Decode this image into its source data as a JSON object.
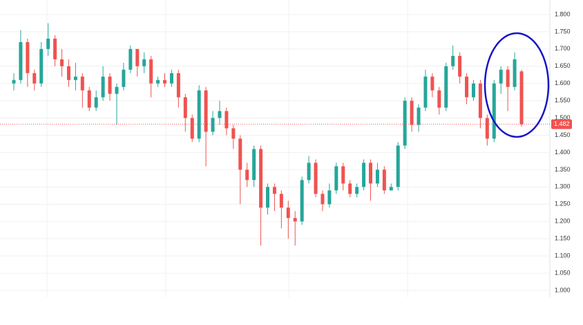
{
  "chart_data": {
    "type": "candlestick",
    "up_color": "#26a69a",
    "down_color": "#ef5350",
    "series": [
      {
        "open": [
          1.6,
          1.61,
          1.72,
          1.63,
          1.6,
          1.7,
          1.73,
          1.67,
          1.65,
          1.61,
          1.62,
          1.58,
          1.53,
          1.56,
          1.62,
          1.57,
          1.59,
          1.64,
          1.7,
          1.65,
          1.67,
          1.6,
          1.61,
          1.6,
          1.63,
          1.56,
          1.5,
          1.44,
          1.58,
          1.46,
          1.5,
          1.52,
          1.47,
          1.44,
          1.35,
          1.32,
          1.41,
          1.24,
          1.3,
          1.28,
          1.24,
          1.21,
          1.2,
          1.32,
          1.37,
          1.28,
          1.25,
          1.29,
          1.36,
          1.31,
          1.28,
          1.3,
          1.37,
          1.31,
          1.35,
          1.29,
          1.3,
          1.42,
          1.55,
          1.48,
          1.53,
          1.62,
          1.58,
          1.53,
          1.65,
          1.68,
          1.62,
          1.56,
          1.6,
          1.5,
          1.44,
          1.6,
          1.64,
          1.59,
          1.635
        ],
        "high": [
          1.63,
          1.755,
          1.73,
          1.64,
          1.72,
          1.775,
          1.74,
          1.7,
          1.67,
          1.66,
          1.63,
          1.59,
          1.58,
          1.65,
          1.63,
          1.6,
          1.66,
          1.71,
          1.7,
          1.69,
          1.68,
          1.62,
          1.63,
          1.64,
          1.64,
          1.57,
          1.51,
          1.595,
          1.59,
          1.52,
          1.55,
          1.53,
          1.48,
          1.45,
          1.37,
          1.42,
          1.42,
          1.31,
          1.31,
          1.29,
          1.26,
          1.23,
          1.33,
          1.39,
          1.38,
          1.29,
          1.31,
          1.37,
          1.37,
          1.32,
          1.31,
          1.38,
          1.38,
          1.37,
          1.36,
          1.31,
          1.43,
          1.56,
          1.56,
          1.54,
          1.64,
          1.63,
          1.59,
          1.66,
          1.71,
          1.69,
          1.63,
          1.61,
          1.61,
          1.51,
          1.61,
          1.65,
          1.65,
          1.69,
          1.64
        ],
        "low": [
          1.58,
          1.6,
          1.59,
          1.58,
          1.59,
          1.68,
          1.65,
          1.62,
          1.59,
          1.58,
          1.53,
          1.52,
          1.52,
          1.55,
          1.55,
          1.48,
          1.58,
          1.63,
          1.62,
          1.63,
          1.56,
          1.59,
          1.59,
          1.59,
          1.53,
          1.46,
          1.43,
          1.43,
          1.36,
          1.45,
          1.48,
          1.45,
          1.41,
          1.25,
          1.3,
          1.3,
          1.13,
          1.22,
          1.23,
          1.18,
          1.15,
          1.13,
          1.19,
          1.31,
          1.27,
          1.23,
          1.24,
          1.28,
          1.29,
          1.27,
          1.27,
          1.29,
          1.26,
          1.3,
          1.28,
          1.29,
          1.29,
          1.41,
          1.46,
          1.46,
          1.52,
          1.56,
          1.51,
          1.52,
          1.64,
          1.6,
          1.54,
          1.55,
          1.47,
          1.42,
          1.43,
          1.57,
          1.52,
          1.58,
          1.475
        ],
        "close": [
          1.61,
          1.72,
          1.63,
          1.6,
          1.7,
          1.73,
          1.67,
          1.65,
          1.61,
          1.62,
          1.58,
          1.53,
          1.56,
          1.62,
          1.57,
          1.59,
          1.64,
          1.7,
          1.65,
          1.67,
          1.6,
          1.61,
          1.6,
          1.63,
          1.56,
          1.5,
          1.44,
          1.58,
          1.46,
          1.5,
          1.52,
          1.47,
          1.44,
          1.35,
          1.32,
          1.41,
          1.24,
          1.3,
          1.28,
          1.24,
          1.21,
          1.2,
          1.32,
          1.37,
          1.28,
          1.25,
          1.29,
          1.36,
          1.31,
          1.28,
          1.3,
          1.37,
          1.31,
          1.35,
          1.29,
          1.3,
          1.42,
          1.55,
          1.48,
          1.53,
          1.62,
          1.58,
          1.53,
          1.65,
          1.68,
          1.62,
          1.56,
          1.6,
          1.5,
          1.44,
          1.6,
          1.64,
          1.59,
          1.67,
          1.482
        ]
      }
    ],
    "current_price": 1.482,
    "ylim": [
      0.98,
      1.842
    ],
    "yticks": [
      {
        "value": 1.0,
        "label": "1.000"
      },
      {
        "value": 1.05,
        "label": "1.050"
      },
      {
        "value": 1.1,
        "label": "1.100"
      },
      {
        "value": 1.15,
        "label": "1.150"
      },
      {
        "value": 1.2,
        "label": "1.200"
      },
      {
        "value": 1.25,
        "label": "1.250"
      },
      {
        "value": 1.3,
        "label": "1.300"
      },
      {
        "value": 1.35,
        "label": "1.350"
      },
      {
        "value": 1.4,
        "label": "1.400"
      },
      {
        "value": 1.45,
        "label": "1.450"
      },
      {
        "value": 1.5,
        "label": "1.500"
      },
      {
        "value": 1.55,
        "label": "1.550"
      },
      {
        "value": 1.6,
        "label": "1.600"
      },
      {
        "value": 1.65,
        "label": "1.650"
      },
      {
        "value": 1.7,
        "label": "1.700"
      },
      {
        "value": 1.75,
        "label": "1.750"
      },
      {
        "value": 1.8,
        "label": "1.800"
      }
    ],
    "grid": true
  }
}
